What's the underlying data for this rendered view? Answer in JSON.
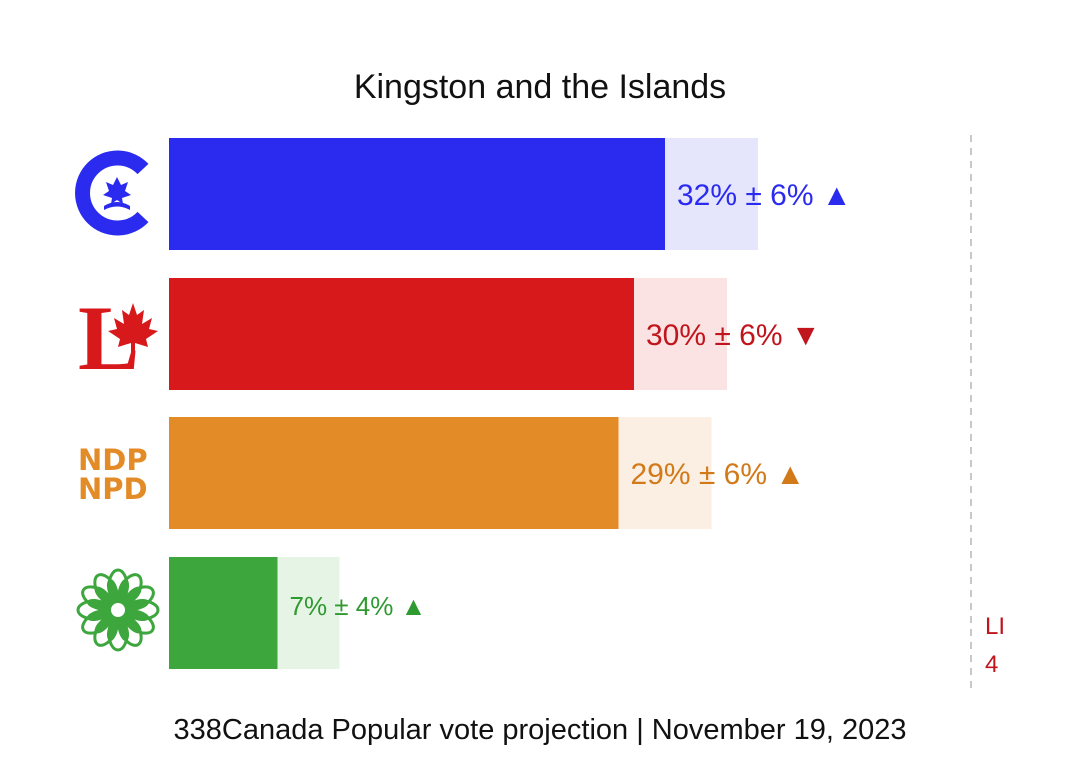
{
  "chart_title": "Kingston and the Islands",
  "footer": "338Canada Popular vote projection | November 19, 2023",
  "side_label": {
    "line1": "LI",
    "line2": "4",
    "color": "#c0151d"
  },
  "chart_data": {
    "type": "bar",
    "orientation": "horizontal",
    "title": "Kingston and the Islands",
    "xlim": [
      0,
      45
    ],
    "parties": [
      {
        "icon": "conservative-logo-icon",
        "value": 32,
        "moe": 6,
        "trend": "up",
        "label": "32% ± 6%",
        "arrow": "▲",
        "color": "#2b2bf0",
        "band_color": "#e5e5fc",
        "text_color": "#2b2bf0"
      },
      {
        "icon": "liberal-logo-icon",
        "value": 30,
        "moe": 6,
        "trend": "down",
        "label": "30% ± 6%",
        "arrow": "▼",
        "color": "#d7191c",
        "band_color": "#fbe3e3",
        "text_color": "#c0151d"
      },
      {
        "icon": "ndp-logo-icon",
        "value": 29,
        "moe": 6,
        "trend": "up",
        "label": "29% ± 6%",
        "arrow": "▲",
        "color": "#e38b27",
        "band_color": "#fbefe3",
        "text_color": "#d27a1a"
      },
      {
        "icon": "green-party-logo-icon",
        "value": 7,
        "moe": 4,
        "trend": "up",
        "label": "7% ± 4%",
        "arrow": "▲",
        "color": "#3da63d",
        "band_color": "#e6f4e6",
        "text_color": "#2f9a2f"
      }
    ]
  },
  "logos": {
    "ndp_line1": "NDP",
    "ndp_line2": "NPD",
    "liberal_letter": "L"
  }
}
